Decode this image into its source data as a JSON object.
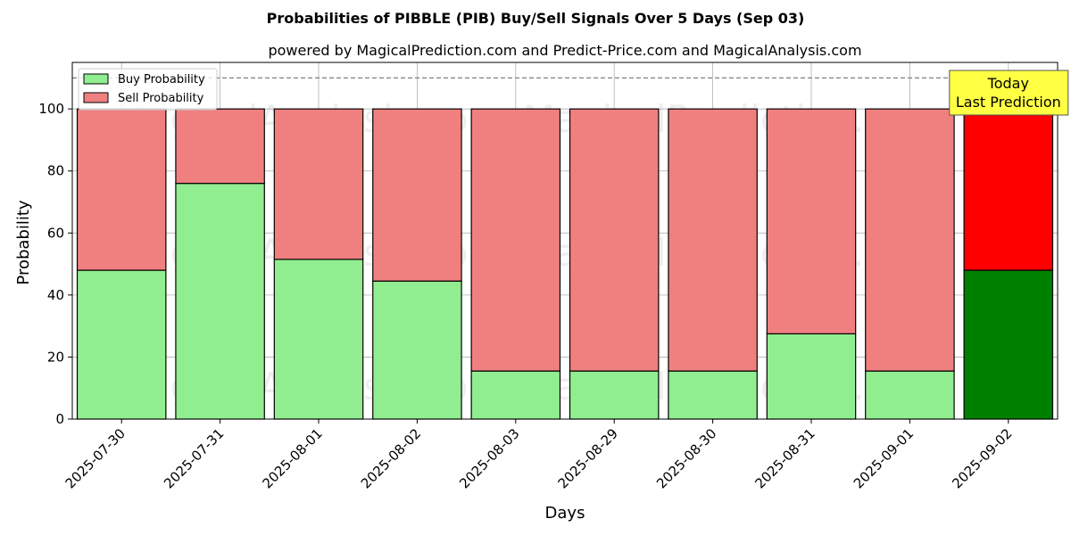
{
  "chart_data": {
    "type": "bar",
    "stacked": true,
    "title": "Probabilities of PIBBLE (PIB) Buy/Sell Signals Over 5 Days (Sep 03)",
    "subtitle": "powered by MagicalPrediction.com and Predict-Price.com and MagicalAnalysis.com",
    "xlabel": "Days",
    "ylabel": "Probability",
    "ylim": [
      0,
      115
    ],
    "yticks": [
      0,
      20,
      40,
      60,
      80,
      100
    ],
    "grid": true,
    "legend_position": "top-left",
    "reference_line": 110,
    "categories": [
      "2025-07-30",
      "2025-07-31",
      "2025-08-01",
      "2025-08-02",
      "2025-08-03",
      "2025-08-29",
      "2025-08-30",
      "2025-08-31",
      "2025-09-01",
      "2025-09-02"
    ],
    "series": [
      {
        "name": "Buy Probability",
        "values": [
          48,
          76,
          51.5,
          44.5,
          15.5,
          15.5,
          15.5,
          27.5,
          15.5,
          48
        ],
        "color": "#90ee90",
        "highlight_color": "#008000"
      },
      {
        "name": "Sell Probability",
        "values": [
          52,
          24,
          48.5,
          55.5,
          84.5,
          84.5,
          84.5,
          72.5,
          84.5,
          52
        ],
        "color": "#f08080",
        "highlight_color": "#ff0000"
      }
    ],
    "highlight_index": 9,
    "annotation": {
      "line1": "Today",
      "line2": "Last Prediction",
      "color": "#ffff44"
    },
    "watermarks": [
      "MagicalAnalysis.com",
      "MagicalPrediction.com"
    ]
  }
}
